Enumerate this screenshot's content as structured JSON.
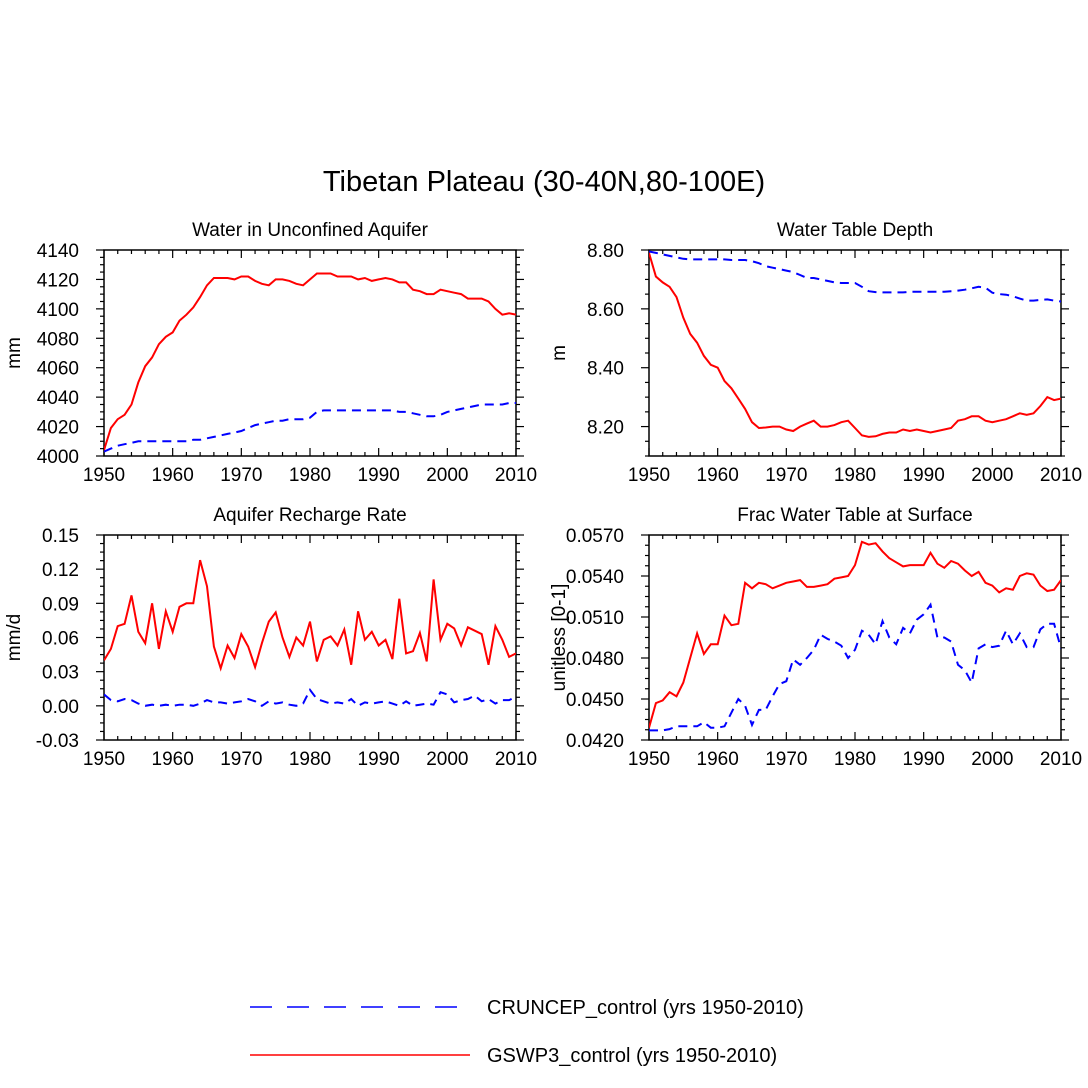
{
  "figure": {
    "title": "Tibetan Plateau (30-40N,80-100E)",
    "legend": [
      {
        "label": "CRUNCEP_control (yrs 1950-2010)",
        "color": "#0000ff",
        "dash": "dashed"
      },
      {
        "label": "GSWP3_control (yrs 1950-2010)",
        "color": "#ff0000",
        "dash": "solid"
      }
    ]
  },
  "chart_data": [
    {
      "type": "line",
      "title": "Water in Unconfined Aquifer",
      "xlabel": "",
      "ylabel": "mm",
      "xlim": [
        1950,
        2010
      ],
      "ylim": [
        4000,
        4140
      ],
      "xticks": [
        1950,
        1960,
        1970,
        1980,
        1990,
        2000,
        2010
      ],
      "yticks": [
        4000,
        4020,
        4040,
        4060,
        4080,
        4100,
        4120,
        4140
      ],
      "ytick_labels": [
        "4000",
        "4020",
        "4040",
        "4060",
        "4080",
        "4100",
        "4120",
        "4140"
      ],
      "x": [
        1950,
        1951,
        1952,
        1953,
        1954,
        1955,
        1956,
        1957,
        1958,
        1959,
        1960,
        1961,
        1962,
        1963,
        1964,
        1965,
        1966,
        1967,
        1968,
        1969,
        1970,
        1971,
        1972,
        1973,
        1974,
        1975,
        1976,
        1977,
        1978,
        1979,
        1980,
        1981,
        1982,
        1983,
        1984,
        1985,
        1986,
        1987,
        1988,
        1989,
        1990,
        1991,
        1992,
        1993,
        1994,
        1995,
        1996,
        1997,
        1998,
        1999,
        2000,
        2001,
        2002,
        2003,
        2004,
        2005,
        2006,
        2007,
        2008,
        2009,
        2010
      ],
      "series": [
        {
          "name": "CRUNCEP_control (yrs 1950-2010)",
          "color": "#0000ff",
          "dash": "dashed",
          "values": [
            4003,
            4005,
            4007,
            4008,
            4009,
            4010,
            4010,
            4010,
            4010,
            4010,
            4010,
            4010,
            4010,
            4011,
            4011,
            4012,
            4013,
            4014,
            4015,
            4016,
            4017,
            4019,
            4021,
            4022,
            4023,
            4024,
            4024,
            4025,
            4025,
            4025,
            4026,
            4030,
            4031,
            4031,
            4031,
            4031,
            4031,
            4031,
            4031,
            4031,
            4031,
            4031,
            4031,
            4030,
            4030,
            4029,
            4028,
            4027,
            4027,
            4028,
            4030,
            4031,
            4032,
            4033,
            4034,
            4035,
            4035,
            4035,
            4035,
            4036,
            4036
          ]
        },
        {
          "name": "GSWP3_control (yrs 1950-2010)",
          "color": "#ff0000",
          "dash": "solid",
          "values": [
            4004,
            4019,
            4025,
            4028,
            4035,
            4050,
            4061,
            4067,
            4076,
            4081,
            4084,
            4092,
            4096,
            4101,
            4108,
            4116,
            4121,
            4121,
            4121,
            4120,
            4122,
            4122,
            4119,
            4117,
            4116,
            4120,
            4120,
            4119,
            4117,
            4116,
            4120,
            4124,
            4124,
            4124,
            4122,
            4122,
            4122,
            4120,
            4121,
            4119,
            4120,
            4121,
            4120,
            4118,
            4118,
            4113,
            4112,
            4110,
            4110,
            4113,
            4112,
            4111,
            4110,
            4107,
            4107,
            4107,
            4105,
            4100,
            4096,
            4097,
            4096
          ]
        }
      ]
    },
    {
      "type": "line",
      "title": "Water Table Depth",
      "xlabel": "",
      "ylabel": "m",
      "xlim": [
        1950,
        2010
      ],
      "ylim": [
        8.1,
        8.8
      ],
      "xticks": [
        1950,
        1960,
        1970,
        1980,
        1990,
        2000,
        2010
      ],
      "yticks": [
        8.2,
        8.4,
        8.6,
        8.8
      ],
      "ytick_labels": [
        "8.20",
        "8.40",
        "8.60",
        "8.80"
      ],
      "x": [
        1950,
        1951,
        1952,
        1953,
        1954,
        1955,
        1956,
        1957,
        1958,
        1959,
        1960,
        1961,
        1962,
        1963,
        1964,
        1965,
        1966,
        1967,
        1968,
        1969,
        1970,
        1971,
        1972,
        1973,
        1974,
        1975,
        1976,
        1977,
        1978,
        1979,
        1980,
        1981,
        1982,
        1983,
        1984,
        1985,
        1986,
        1987,
        1988,
        1989,
        1990,
        1991,
        1992,
        1993,
        1994,
        1995,
        1996,
        1997,
        1998,
        1999,
        2000,
        2001,
        2002,
        2003,
        2004,
        2005,
        2006,
        2007,
        2008,
        2009,
        2010
      ],
      "series": [
        {
          "name": "CRUNCEP_control (yrs 1950-2010)",
          "color": "#0000ff",
          "dash": "dashed",
          "values": [
            8.795,
            8.79,
            8.785,
            8.78,
            8.775,
            8.77,
            8.768,
            8.768,
            8.768,
            8.768,
            8.768,
            8.768,
            8.766,
            8.766,
            8.766,
            8.762,
            8.755,
            8.745,
            8.74,
            8.735,
            8.73,
            8.725,
            8.715,
            8.705,
            8.705,
            8.7,
            8.695,
            8.69,
            8.688,
            8.688,
            8.688,
            8.675,
            8.66,
            8.657,
            8.656,
            8.656,
            8.656,
            8.656,
            8.658,
            8.658,
            8.658,
            8.658,
            8.658,
            8.658,
            8.66,
            8.662,
            8.665,
            8.67,
            8.675,
            8.672,
            8.655,
            8.65,
            8.648,
            8.643,
            8.635,
            8.628,
            8.628,
            8.63,
            8.632,
            8.628,
            8.625
          ]
        },
        {
          "name": "GSWP3_control (yrs 1950-2010)",
          "color": "#ff0000",
          "dash": "solid",
          "values": [
            8.79,
            8.71,
            8.69,
            8.675,
            8.64,
            8.57,
            8.515,
            8.485,
            8.44,
            8.41,
            8.4,
            8.355,
            8.33,
            8.295,
            8.26,
            8.215,
            8.195,
            8.197,
            8.2,
            8.2,
            8.19,
            8.185,
            8.2,
            8.21,
            8.22,
            8.2,
            8.2,
            8.205,
            8.215,
            8.22,
            8.195,
            8.17,
            8.165,
            8.167,
            8.175,
            8.18,
            8.18,
            8.19,
            8.185,
            8.19,
            8.185,
            8.18,
            8.185,
            8.19,
            8.195,
            8.22,
            8.225,
            8.235,
            8.235,
            8.22,
            8.215,
            8.22,
            8.225,
            8.235,
            8.245,
            8.24,
            8.245,
            8.27,
            8.3,
            8.29,
            8.295
          ]
        }
      ]
    },
    {
      "type": "line",
      "title": "Aquifer Recharge Rate",
      "xlabel": "",
      "ylabel": "mm/d",
      "xlim": [
        1950,
        2010
      ],
      "ylim": [
        -0.03,
        0.15
      ],
      "xticks": [
        1950,
        1960,
        1970,
        1980,
        1990,
        2000,
        2010
      ],
      "yticks": [
        -0.03,
        0.0,
        0.03,
        0.06,
        0.09,
        0.12,
        0.15
      ],
      "ytick_labels": [
        "-0.03",
        "0.00",
        "0.03",
        "0.06",
        "0.09",
        "0.12",
        "0.15"
      ],
      "x": [
        1950,
        1951,
        1952,
        1953,
        1954,
        1955,
        1956,
        1957,
        1958,
        1959,
        1960,
        1961,
        1962,
        1963,
        1964,
        1965,
        1966,
        1967,
        1968,
        1969,
        1970,
        1971,
        1972,
        1973,
        1974,
        1975,
        1976,
        1977,
        1978,
        1979,
        1980,
        1981,
        1982,
        1983,
        1984,
        1985,
        1986,
        1987,
        1988,
        1989,
        1990,
        1991,
        1992,
        1993,
        1994,
        1995,
        1996,
        1997,
        1998,
        1999,
        2000,
        2001,
        2002,
        2003,
        2004,
        2005,
        2006,
        2007,
        2008,
        2009,
        2010
      ],
      "series": [
        {
          "name": "CRUNCEP_control (yrs 1950-2010)",
          "color": "#0000ff",
          "dash": "dashed",
          "values": [
            0.01,
            0.005,
            0.004,
            0.006,
            0.005,
            0.002,
            0.0,
            0.001,
            0.0,
            0.001,
            0.0,
            0.001,
            0.001,
            0.0,
            0.002,
            0.005,
            0.003,
            0.003,
            0.002,
            0.003,
            0.004,
            0.006,
            0.004,
            0.0,
            0.004,
            0.002,
            0.003,
            0.001,
            0.0,
            0.002,
            0.014,
            0.006,
            0.004,
            0.002,
            0.003,
            0.002,
            0.006,
            0.0,
            0.003,
            0.002,
            0.003,
            0.004,
            0.002,
            0.0,
            0.004,
            0.0,
            0.001,
            0.002,
            0.001,
            0.012,
            0.01,
            0.003,
            0.005,
            0.006,
            0.009,
            0.004,
            0.006,
            0.002,
            0.005,
            0.005,
            0.008
          ]
        },
        {
          "name": "GSWP3_control (yrs 1950-2010)",
          "color": "#ff0000",
          "dash": "solid",
          "values": [
            0.04,
            0.05,
            0.07,
            0.072,
            0.097,
            0.065,
            0.055,
            0.09,
            0.05,
            0.083,
            0.065,
            0.087,
            0.09,
            0.09,
            0.128,
            0.105,
            0.052,
            0.033,
            0.053,
            0.042,
            0.063,
            0.052,
            0.034,
            0.055,
            0.074,
            0.082,
            0.06,
            0.043,
            0.06,
            0.053,
            0.074,
            0.039,
            0.058,
            0.061,
            0.053,
            0.067,
            0.036,
            0.083,
            0.058,
            0.065,
            0.053,
            0.058,
            0.041,
            0.094,
            0.046,
            0.048,
            0.064,
            0.039,
            0.111,
            0.058,
            0.072,
            0.068,
            0.053,
            0.069,
            0.066,
            0.063,
            0.036,
            0.07,
            0.058,
            0.043,
            0.046
          ]
        }
      ]
    },
    {
      "type": "line",
      "title": "Frac Water Table at Surface",
      "xlabel": "",
      "ylabel": "unitless [0-1]",
      "xlim": [
        1950,
        2010
      ],
      "ylim": [
        0.042,
        0.057
      ],
      "xticks": [
        1950,
        1960,
        1970,
        1980,
        1990,
        2000,
        2010
      ],
      "yticks": [
        0.042,
        0.045,
        0.048,
        0.051,
        0.054,
        0.057
      ],
      "ytick_labels": [
        "0.0420",
        "0.0450",
        "0.0480",
        "0.0510",
        "0.0540",
        "0.0570"
      ],
      "x": [
        1950,
        1951,
        1952,
        1953,
        1954,
        1955,
        1956,
        1957,
        1958,
        1959,
        1960,
        1961,
        1962,
        1963,
        1964,
        1965,
        1966,
        1967,
        1968,
        1969,
        1970,
        1971,
        1972,
        1973,
        1974,
        1975,
        1976,
        1977,
        1978,
        1979,
        1980,
        1981,
        1982,
        1983,
        1984,
        1985,
        1986,
        1987,
        1988,
        1989,
        1990,
        1991,
        1992,
        1993,
        1994,
        1995,
        1996,
        1997,
        1998,
        1999,
        2000,
        2001,
        2002,
        2003,
        2004,
        2005,
        2006,
        2007,
        2008,
        2009,
        2010
      ],
      "series": [
        {
          "name": "CRUNCEP_control (yrs 1950-2010)",
          "color": "#0000ff",
          "dash": "dashed",
          "values": [
            0.0427,
            0.0427,
            0.0427,
            0.0428,
            0.043,
            0.043,
            0.043,
            0.043,
            0.0433,
            0.0429,
            0.0429,
            0.043,
            0.044,
            0.045,
            0.0445,
            0.0431,
            0.0442,
            0.0442,
            0.0452,
            0.0461,
            0.0463,
            0.0479,
            0.0475,
            0.048,
            0.0486,
            0.0497,
            0.0494,
            0.0492,
            0.0489,
            0.048,
            0.0486,
            0.05,
            0.0497,
            0.049,
            0.0507,
            0.0495,
            0.049,
            0.0502,
            0.0498,
            0.0508,
            0.0512,
            0.0519,
            0.0495,
            0.0495,
            0.0492,
            0.0475,
            0.0471,
            0.0462,
            0.0487,
            0.049,
            0.0488,
            0.0489,
            0.05,
            0.049,
            0.0498,
            0.0488,
            0.0488,
            0.0501,
            0.0505,
            0.0505,
            0.0487
          ]
        },
        {
          "name": "GSWP3_control (yrs 1950-2010)",
          "color": "#ff0000",
          "dash": "solid",
          "values": [
            0.0429,
            0.0447,
            0.0449,
            0.0455,
            0.0452,
            0.0462,
            0.048,
            0.0498,
            0.0483,
            0.049,
            0.049,
            0.0511,
            0.0504,
            0.0505,
            0.0535,
            0.0531,
            0.0535,
            0.0534,
            0.0531,
            0.0533,
            0.0535,
            0.0536,
            0.0537,
            0.0532,
            0.0532,
            0.0533,
            0.0534,
            0.0538,
            0.0539,
            0.054,
            0.0548,
            0.0565,
            0.0563,
            0.0564,
            0.0558,
            0.0553,
            0.055,
            0.0547,
            0.0548,
            0.0548,
            0.0548,
            0.0557,
            0.0549,
            0.0546,
            0.0551,
            0.0549,
            0.0544,
            0.054,
            0.0543,
            0.0535,
            0.0533,
            0.0528,
            0.0531,
            0.053,
            0.054,
            0.0542,
            0.0541,
            0.0533,
            0.0529,
            0.053,
            0.0537
          ]
        }
      ]
    }
  ]
}
